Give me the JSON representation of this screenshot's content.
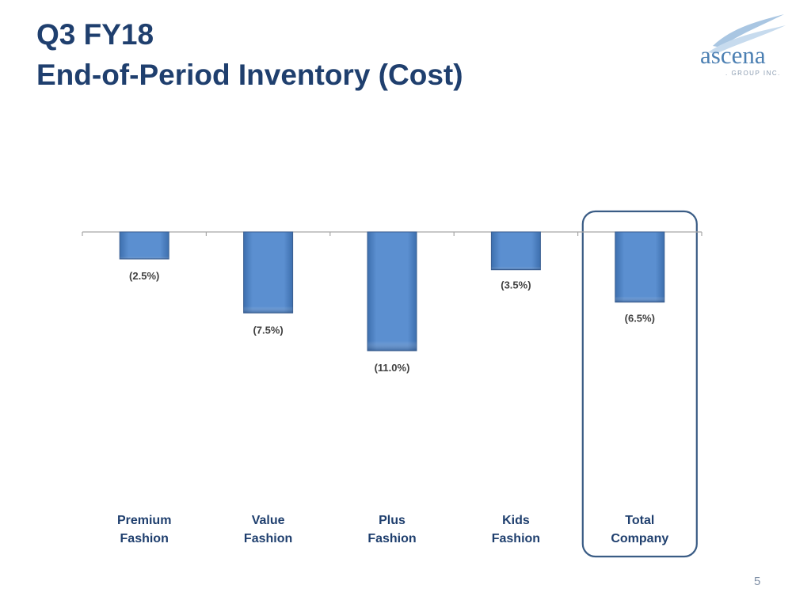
{
  "header": {
    "title_line1": "Q3 FY18",
    "title_line2": "End-of-Period Inventory (Cost)"
  },
  "logo": {
    "name": "ascena",
    "sub": ". GROUP INC.",
    "swoosh_icon": "swoosh-icon"
  },
  "chart_data": {
    "type": "bar",
    "title": "",
    "xlabel": "",
    "ylabel": "",
    "categories": [
      [
        "Premium",
        "Fashion"
      ],
      [
        "Value",
        "Fashion"
      ],
      [
        "Plus",
        "Fashion"
      ],
      [
        "Kids",
        "Fashion"
      ],
      [
        "Total",
        "Company"
      ]
    ],
    "values": [
      -2.5,
      -7.5,
      -11.0,
      -3.5,
      -6.5
    ],
    "data_labels": [
      "(2.5%)",
      "(7.5%)",
      "(11.0%)",
      "(3.5%)",
      "(6.5%)"
    ],
    "ylim": [
      -11.0,
      0
    ],
    "grid": false,
    "legend": "none",
    "highlighted_category": "Total Company",
    "bar_color": "#5b8fd0",
    "highlight_border_color": "#3a5c85"
  },
  "footer": {
    "page_number": "5"
  }
}
